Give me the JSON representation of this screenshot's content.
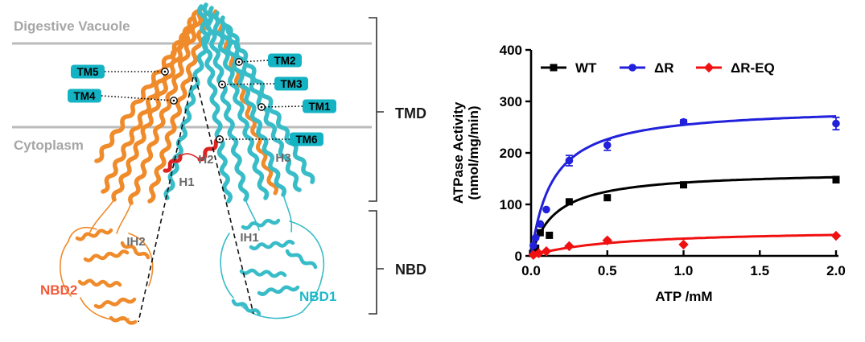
{
  "figure": {
    "structure": {
      "membrane_labels": {
        "top": "Digestive Vacuole",
        "bottom": "Cytoplasm"
      },
      "tm_labels": [
        "TM5",
        "TM4",
        "TM2",
        "TM3",
        "TM1",
        "TM6"
      ],
      "helix_labels": [
        "H1",
        "H2",
        "H3",
        "IH1",
        "IH2"
      ],
      "domain_labels": {
        "nbd1": "NBD1",
        "nbd2": "NBD2"
      },
      "bracket_labels": {
        "tmd": "TMD",
        "nbd": "NBD"
      },
      "colors": {
        "cyan_half": "#38bcc8",
        "orange_half": "#ef8b2b",
        "red_helices": "#dd2222",
        "tm_tag_bg": "#14b3c4",
        "membrane_line": "#bbbbbb",
        "membrane_text": "#a6a6a6",
        "helix_label_text": "#6a6a6a",
        "nbd1_text": "#1cb8c8",
        "nbd2_text": "#f2593a"
      }
    },
    "chart_data": {
      "type": "scatter",
      "title": "",
      "xlabel": "ATP /mM",
      "ylabel_line1": "ATPase Activity",
      "ylabel_line2": "(nmol/mg/min)",
      "xlim": [
        0,
        2
      ],
      "ylim": [
        0,
        400
      ],
      "xticks": [
        0,
        0.5,
        1,
        1.5,
        2
      ],
      "xtick_labels": [
        "0.0",
        "0.5",
        "1.0",
        "1.5",
        "2.0"
      ],
      "yticks": [
        0,
        100,
        200,
        300,
        400
      ],
      "ytick_labels": [
        "0",
        "100",
        "200",
        "300",
        "400"
      ],
      "grid": false,
      "legend_position": "top-inside",
      "series": [
        {
          "name": "WT",
          "color": "#000000",
          "marker": "square",
          "x": [
            0.01,
            0.03,
            0.06,
            0.12,
            0.25,
            0.5,
            1.0,
            2.0
          ],
          "y": [
            5,
            15,
            45,
            40,
            105,
            113,
            138,
            148
          ],
          "err": [
            0,
            0,
            0,
            0,
            0,
            0,
            0,
            6
          ],
          "fit": {
            "model": "michaelis-menten",
            "vmax": 165,
            "km": 0.16
          }
        },
        {
          "name": "ΔR",
          "color": "#2121db",
          "marker": "circle",
          "x": [
            0.015,
            0.03,
            0.06,
            0.1,
            0.25,
            0.5,
            1.0,
            2.0
          ],
          "y": [
            20,
            35,
            62,
            90,
            185,
            215,
            260,
            257
          ],
          "err": [
            0,
            0,
            0,
            0,
            10,
            10,
            4,
            12
          ],
          "fit": {
            "model": "michaelis-menten",
            "vmax": 290,
            "km": 0.14
          }
        },
        {
          "name": "ΔR-EQ",
          "color": "#f01010",
          "marker": "diamond",
          "x": [
            0.015,
            0.05,
            0.1,
            0.25,
            0.5,
            1.0,
            2.0
          ],
          "y": [
            2,
            5,
            9,
            19,
            30,
            22,
            39
          ],
          "err": [
            0,
            0,
            0,
            0,
            0,
            0,
            0
          ],
          "fit": {
            "model": "michaelis-menten",
            "vmax": 52,
            "km": 0.55
          }
        }
      ]
    }
  }
}
